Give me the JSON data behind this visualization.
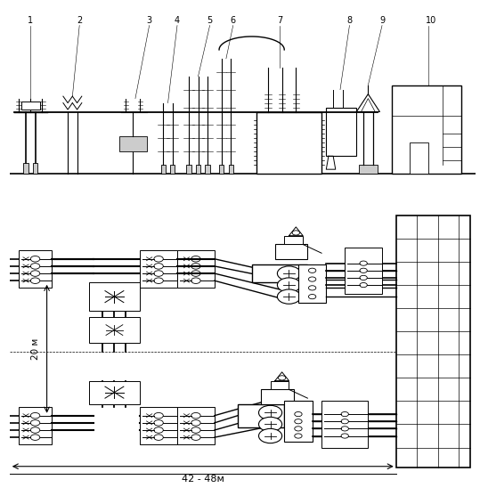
{
  "bg_color": "#ffffff",
  "lc": "#000000",
  "fig_w": 5.39,
  "fig_h": 5.57,
  "dpi": 100,
  "dim_42_48": "42 - 48м",
  "dim_20": "20 м"
}
